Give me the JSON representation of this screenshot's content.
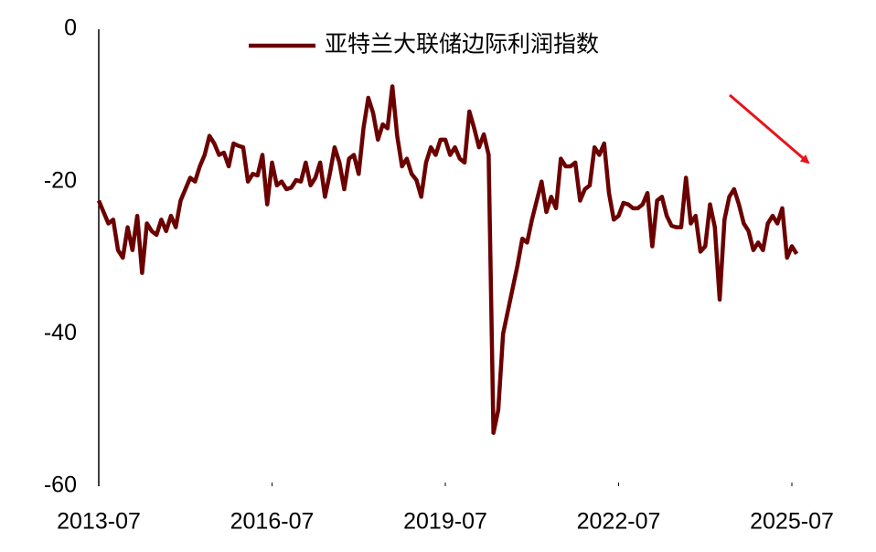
{
  "chart_data": {
    "type": "line",
    "x": [
      "2013-07",
      "2013-08",
      "2013-09",
      "2013-10",
      "2013-11",
      "2013-12",
      "2014-01",
      "2014-02",
      "2014-03",
      "2014-04",
      "2014-05",
      "2014-06",
      "2014-07",
      "2014-08",
      "2014-09",
      "2014-10",
      "2014-11",
      "2014-12",
      "2015-01",
      "2015-02",
      "2015-03",
      "2015-04",
      "2015-05",
      "2015-06",
      "2015-07",
      "2015-08",
      "2015-09",
      "2015-10",
      "2015-11",
      "2015-12",
      "2016-01",
      "2016-02",
      "2016-03",
      "2016-04",
      "2016-05",
      "2016-06",
      "2016-07",
      "2016-08",
      "2016-09",
      "2016-10",
      "2016-11",
      "2016-12",
      "2017-01",
      "2017-02",
      "2017-03",
      "2017-04",
      "2017-05",
      "2017-06",
      "2017-07",
      "2017-08",
      "2017-09",
      "2017-10",
      "2017-11",
      "2017-12",
      "2018-01",
      "2018-02",
      "2018-03",
      "2018-04",
      "2018-05",
      "2018-06",
      "2018-07",
      "2018-08",
      "2018-09",
      "2018-10",
      "2018-11",
      "2018-12",
      "2019-01",
      "2019-02",
      "2019-03",
      "2019-04",
      "2019-05",
      "2019-06",
      "2019-07",
      "2019-08",
      "2019-09",
      "2019-10",
      "2019-11",
      "2019-12",
      "2020-01",
      "2020-02",
      "2020-03",
      "2020-04",
      "2020-05",
      "2020-06",
      "2020-07",
      "2020-08",
      "2020-09",
      "2020-10",
      "2020-11",
      "2020-12",
      "2021-01",
      "2021-02",
      "2021-03",
      "2021-04",
      "2021-05",
      "2021-06",
      "2021-07",
      "2021-08",
      "2021-09",
      "2021-10",
      "2021-11",
      "2021-12",
      "2022-01",
      "2022-02",
      "2022-03",
      "2022-04",
      "2022-05",
      "2022-06",
      "2022-07",
      "2022-08",
      "2022-09",
      "2022-10",
      "2022-11",
      "2022-12",
      "2023-01",
      "2023-02",
      "2023-03",
      "2023-04",
      "2023-05",
      "2023-06",
      "2023-07",
      "2023-08",
      "2023-09",
      "2023-10",
      "2023-11",
      "2023-12",
      "2024-01",
      "2024-02",
      "2024-03",
      "2024-04",
      "2024-05",
      "2024-06",
      "2024-07",
      "2024-08",
      "2024-09",
      "2024-10",
      "2024-11",
      "2024-12",
      "2025-01",
      "2025-02",
      "2025-03",
      "2025-04",
      "2025-05",
      "2025-06",
      "2025-07",
      "2025-08"
    ],
    "series": [
      {
        "name": "亚特兰大联储边际利润指数",
        "color": "#6b0000",
        "values": [
          -22.5,
          -24,
          -25.5,
          -25,
          -29,
          -30,
          -26,
          -29,
          -24.5,
          -32,
          -25.5,
          -26.5,
          -27,
          -25,
          -26.5,
          -24.5,
          -26,
          -22.5,
          -21,
          -19.5,
          -20,
          -18,
          -16.5,
          -14,
          -15,
          -16.5,
          -16.2,
          -18,
          -15,
          -15.3,
          -15.5,
          -20,
          -19,
          -19.2,
          -16.5,
          -23,
          -17.5,
          -20.5,
          -20,
          -21,
          -20.8,
          -19.8,
          -20,
          -17.5,
          -20.5,
          -19.5,
          -17.5,
          -22,
          -19,
          -15.5,
          -17.5,
          -21,
          -17,
          -16.5,
          -19,
          -13,
          -9,
          -11,
          -14.5,
          -12.5,
          -13,
          -7.5,
          -14,
          -18,
          -17,
          -19,
          -19.8,
          -22,
          -17.5,
          -15.5,
          -16.5,
          -14.5,
          -14.5,
          -16.5,
          -15.5,
          -17,
          -17.5,
          -10.8,
          -13,
          -15.5,
          -13.8,
          -16.5,
          -53,
          -50,
          -40,
          -37,
          -34,
          -31,
          -27.5,
          -28,
          -25,
          -22.5,
          -20,
          -24,
          -22,
          -23.5,
          -17,
          -18,
          -18,
          -17.5,
          -22.5,
          -21,
          -20.5,
          -15.5,
          -16.5,
          -15,
          -21.5,
          -25,
          -24.5,
          -22.8,
          -23,
          -23.5,
          -23.5,
          -23,
          -21.5,
          -28.5,
          -22.5,
          -22,
          -24.5,
          -25.8,
          -26,
          -26,
          -19.5,
          -25.5,
          -24.5,
          -29.2,
          -28.5,
          -23,
          -26,
          -35.5,
          -25,
          -22,
          -21,
          -23,
          -25.5,
          -26.5,
          -29,
          -28,
          -29,
          -25.5,
          -24.5,
          -25.5,
          -23.5,
          -30,
          -28.5,
          -29.5
        ]
      }
    ],
    "xlim": [
      "2013-07",
      "2025-07"
    ],
    "xticks": [
      "2013-07",
      "2016-07",
      "2019-07",
      "2022-07",
      "2025-07"
    ],
    "ylim": [
      -60,
      0
    ],
    "yticks": [
      0,
      -20,
      -40,
      -60
    ],
    "legend": "top"
  }
}
